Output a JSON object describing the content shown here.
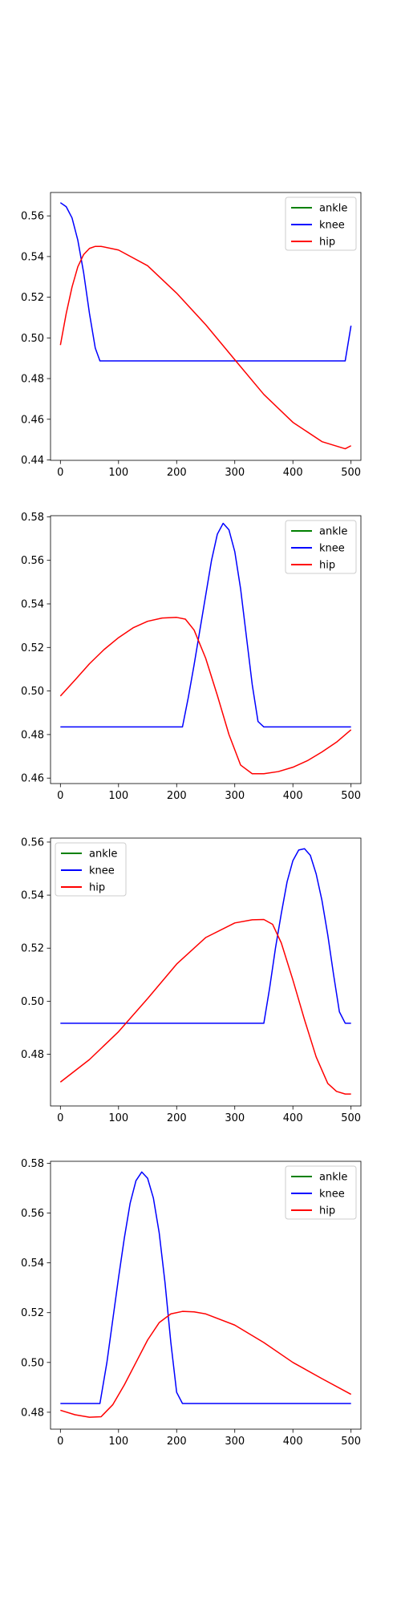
{
  "chart_data": [
    {
      "type": "line",
      "title": "",
      "xlabel": "",
      "ylabel": "",
      "xlim": [
        -17,
        517
      ],
      "ylim": [
        0.4398,
        0.5715
      ],
      "xticks": [
        0,
        100,
        200,
        300,
        400,
        500
      ],
      "yticks": [
        0.44,
        0.46,
        0.48,
        0.5,
        0.52,
        0.54,
        0.56
      ],
      "ytick_decimals": 2,
      "legend": {
        "position": "top-right"
      },
      "series": [
        {
          "name": "ankle",
          "color": "#008000",
          "x": [],
          "y": []
        },
        {
          "name": "knee",
          "color": "#0000ff",
          "x": [
            0,
            10,
            20,
            30,
            40,
            50,
            60,
            68,
            100,
            150,
            200,
            250,
            300,
            350,
            400,
            450,
            490,
            500
          ],
          "y": [
            0.5665,
            0.5645,
            0.559,
            0.548,
            0.532,
            0.512,
            0.495,
            0.4887,
            0.4887,
            0.4887,
            0.4887,
            0.4887,
            0.4887,
            0.4887,
            0.4887,
            0.4887,
            0.4887,
            0.506
          ]
        },
        {
          "name": "hip",
          "color": "#ff0000",
          "x": [
            0,
            10,
            20,
            30,
            40,
            50,
            60,
            70,
            100,
            150,
            200,
            250,
            300,
            350,
            400,
            450,
            490,
            500
          ],
          "y": [
            0.4965,
            0.512,
            0.525,
            0.535,
            0.541,
            0.544,
            0.545,
            0.545,
            0.5432,
            0.5355,
            0.522,
            0.5065,
            0.4893,
            0.4722,
            0.4585,
            0.449,
            0.4455,
            0.447
          ]
        }
      ]
    },
    {
      "type": "line",
      "title": "",
      "xlabel": "",
      "ylabel": "",
      "xlim": [
        -17,
        517
      ],
      "ylim": [
        0.4575,
        0.5805
      ],
      "xticks": [
        0,
        100,
        200,
        300,
        400,
        500
      ],
      "yticks": [
        0.46,
        0.48,
        0.5,
        0.52,
        0.54,
        0.56,
        0.58
      ],
      "ytick_decimals": 2,
      "legend": {
        "position": "top-right"
      },
      "series": [
        {
          "name": "ankle",
          "color": "#008000",
          "x": [],
          "y": []
        },
        {
          "name": "knee",
          "color": "#0000ff",
          "x": [
            0,
            100,
            210,
            220,
            230,
            240,
            250,
            260,
            270,
            280,
            290,
            300,
            310,
            320,
            330,
            340,
            350,
            400,
            450,
            500
          ],
          "y": [
            0.4835,
            0.4835,
            0.4835,
            0.497,
            0.512,
            0.528,
            0.544,
            0.56,
            0.572,
            0.577,
            0.574,
            0.564,
            0.547,
            0.525,
            0.503,
            0.486,
            0.4835,
            0.4835,
            0.4835,
            0.4835
          ]
        },
        {
          "name": "hip",
          "color": "#ff0000",
          "x": [
            0,
            25,
            50,
            75,
            100,
            125,
            150,
            175,
            200,
            215,
            230,
            250,
            270,
            290,
            310,
            330,
            350,
            375,
            400,
            425,
            450,
            475,
            500
          ],
          "y": [
            0.4977,
            0.505,
            0.5125,
            0.519,
            0.5245,
            0.529,
            0.532,
            0.5335,
            0.5338,
            0.533,
            0.528,
            0.515,
            0.498,
            0.48,
            0.466,
            0.462,
            0.462,
            0.463,
            0.465,
            0.468,
            0.472,
            0.4765,
            0.4822
          ]
        }
      ]
    },
    {
      "type": "line",
      "title": "",
      "xlabel": "",
      "ylabel": "",
      "xlim": [
        -17,
        517
      ],
      "ylim": [
        0.4605,
        0.5615
      ],
      "xticks": [
        0,
        100,
        200,
        300,
        400,
        500
      ],
      "yticks": [
        0.48,
        0.5,
        0.52,
        0.54,
        0.56
      ],
      "ytick_decimals": 2,
      "legend": {
        "position": "top-left"
      },
      "series": [
        {
          "name": "ankle",
          "color": "#008000",
          "x": [],
          "y": []
        },
        {
          "name": "knee",
          "color": "#0000ff",
          "x": [
            0,
            100,
            200,
            300,
            350,
            360,
            370,
            380,
            390,
            400,
            410,
            420,
            430,
            440,
            450,
            460,
            470,
            480,
            490,
            500
          ],
          "y": [
            0.4917,
            0.4917,
            0.4917,
            0.4917,
            0.4917,
            0.505,
            0.52,
            0.533,
            0.545,
            0.553,
            0.557,
            0.5575,
            0.555,
            0.548,
            0.538,
            0.525,
            0.51,
            0.496,
            0.4917,
            0.4917
          ]
        },
        {
          "name": "hip",
          "color": "#ff0000",
          "x": [
            0,
            50,
            100,
            150,
            200,
            250,
            300,
            330,
            350,
            365,
            380,
            400,
            420,
            440,
            460,
            475,
            490,
            500
          ],
          "y": [
            0.4695,
            0.478,
            0.4885,
            0.501,
            0.514,
            0.524,
            0.5295,
            0.5307,
            0.5308,
            0.529,
            0.522,
            0.508,
            0.493,
            0.479,
            0.469,
            0.466,
            0.465,
            0.465
          ]
        }
      ]
    },
    {
      "type": "line",
      "title": "",
      "xlabel": "",
      "ylabel": "",
      "xlim": [
        -17,
        517
      ],
      "ylim": [
        0.4732,
        0.5808
      ],
      "xticks": [
        0,
        100,
        200,
        300,
        400,
        500
      ],
      "yticks": [
        0.48,
        0.5,
        0.52,
        0.54,
        0.56,
        0.58
      ],
      "ytick_decimals": 2,
      "legend": {
        "position": "top-right"
      },
      "series": [
        {
          "name": "ankle",
          "color": "#008000",
          "x": [],
          "y": []
        },
        {
          "name": "knee",
          "color": "#0000ff",
          "x": [
            0,
            50,
            68,
            80,
            90,
            100,
            110,
            120,
            130,
            140,
            150,
            160,
            170,
            180,
            190,
            200,
            210,
            250,
            300,
            350,
            400,
            450,
            500
          ],
          "y": [
            0.4835,
            0.4835,
            0.4835,
            0.5,
            0.517,
            0.534,
            0.55,
            0.564,
            0.573,
            0.5765,
            0.574,
            0.566,
            0.552,
            0.532,
            0.508,
            0.488,
            0.4835,
            0.4835,
            0.4835,
            0.4835,
            0.4835,
            0.4835,
            0.4835
          ]
        },
        {
          "name": "hip",
          "color": "#ff0000",
          "x": [
            0,
            25,
            50,
            70,
            90,
            110,
            130,
            150,
            170,
            190,
            210,
            230,
            250,
            300,
            350,
            400,
            450,
            500
          ],
          "y": [
            0.4808,
            0.479,
            0.478,
            0.4782,
            0.483,
            0.491,
            0.5,
            0.509,
            0.516,
            0.5195,
            0.5205,
            0.5203,
            0.5195,
            0.515,
            0.508,
            0.5,
            0.4935,
            0.4872
          ]
        }
      ]
    }
  ]
}
